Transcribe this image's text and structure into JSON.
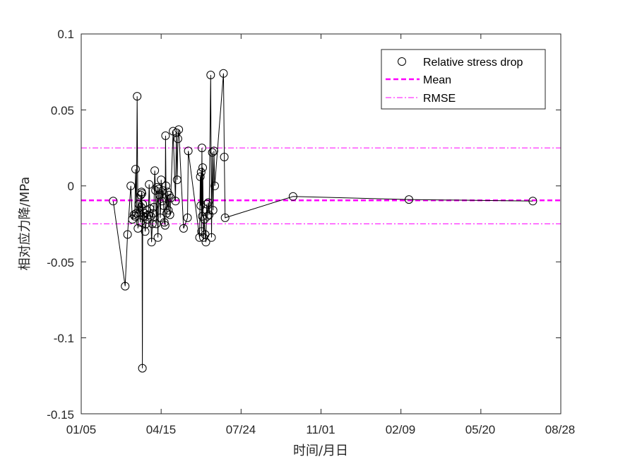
{
  "chart_data": {
    "type": "scatter",
    "xlabel": "时间/月日",
    "ylabel": "相对应力降/MPa",
    "x_ticks": [
      "01/05",
      "04/15",
      "07/24",
      "11/01",
      "02/09",
      "05/20",
      "08/28"
    ],
    "y_ticks": [
      "0.1",
      "0.05",
      "0",
      "-0.05",
      "-0.1",
      "-0.15"
    ],
    "xlim": [
      0,
      600
    ],
    "ylim": [
      -0.15,
      0.1
    ],
    "grid": false,
    "legend_position": "top-right",
    "legend": {
      "stress_label": "Relative stress drop",
      "mean_label": "Mean",
      "rmse_label": "RMSE"
    },
    "mean": -0.0095,
    "rmse_upper": 0.025,
    "rmse_lower": -0.025,
    "colors": {
      "points": "#000000",
      "mean": "#ff00ff",
      "rmse": "#ff00ff"
    },
    "series": [
      {
        "points": [
          [
            40,
            -0.01
          ],
          [
            55,
            -0.066
          ],
          [
            58,
            -0.032
          ],
          [
            62,
            0.0
          ],
          [
            64,
            -0.022
          ],
          [
            66,
            -0.019
          ],
          [
            67,
            -0.02
          ],
          [
            68,
            0.011
          ],
          [
            69,
            -0.018
          ],
          [
            70,
            0.059
          ],
          [
            71,
            -0.028
          ],
          [
            72,
            -0.012
          ],
          [
            73,
            -0.018
          ],
          [
            74,
            -0.024
          ],
          [
            74.5,
            -0.006
          ],
          [
            75,
            -0.014
          ],
          [
            75.5,
            -0.004
          ],
          [
            76,
            -0.005
          ],
          [
            76.5,
            -0.12
          ],
          [
            77,
            -0.012
          ],
          [
            78,
            -0.02
          ],
          [
            79,
            -0.018
          ],
          [
            80,
            -0.03
          ],
          [
            81,
            -0.025
          ],
          [
            82,
            -0.016
          ],
          [
            83,
            -0.022
          ],
          [
            84,
            -0.019
          ],
          [
            85,
            0.001
          ],
          [
            86,
            -0.015
          ],
          [
            87,
            -0.02
          ],
          [
            88,
            -0.037
          ],
          [
            89,
            -0.025
          ],
          [
            90,
            -0.018
          ],
          [
            91,
            -0.014
          ],
          [
            92,
            0.01
          ],
          [
            93,
            -0.003
          ],
          [
            94,
            -0.025
          ],
          [
            95,
            -0.001
          ],
          [
            96,
            -0.034
          ],
          [
            97,
            -0.002
          ],
          [
            98,
            -0.006
          ],
          [
            99,
            -0.021
          ],
          [
            100,
            0.004
          ],
          [
            101,
            -0.01
          ],
          [
            102,
            -0.003
          ],
          [
            103,
            -0.013
          ],
          [
            104,
            -0.024
          ],
          [
            105,
            -0.026
          ],
          [
            105.5,
            0.033
          ],
          [
            106,
            0.0
          ],
          [
            107,
            -0.018
          ],
          [
            108,
            -0.004
          ],
          [
            109,
            -0.016
          ],
          [
            110,
            -0.006
          ],
          [
            111,
            -0.019
          ],
          [
            112,
            -0.008
          ],
          [
            115,
            0.036
          ],
          [
            118,
            -0.01
          ],
          [
            119,
            0.035
          ],
          [
            120,
            0.004
          ],
          [
            121,
            0.031
          ],
          [
            122,
            0.037
          ],
          [
            128,
            -0.028
          ],
          [
            133,
            -0.021
          ],
          [
            134,
            0.023
          ],
          [
            148,
            -0.034
          ],
          [
            149,
            0.006
          ],
          [
            149.5,
            -0.013
          ],
          [
            150,
            0.009
          ],
          [
            150.5,
            -0.03
          ],
          [
            151,
            0.025
          ],
          [
            151.5,
            -0.02
          ],
          [
            152,
            0.012
          ],
          [
            153,
            -0.034
          ],
          [
            154,
            -0.022
          ],
          [
            155,
            -0.032
          ],
          [
            156,
            -0.037
          ],
          [
            157,
            -0.012
          ],
          [
            158,
            -0.02
          ],
          [
            159,
            -0.011
          ],
          [
            160,
            -0.019
          ],
          [
            162,
            0.073
          ],
          [
            163,
            -0.034
          ],
          [
            164,
            0.022
          ],
          [
            165,
            -0.016
          ],
          [
            166,
            0.023
          ],
          [
            167,
            0.0
          ],
          [
            178,
            0.074
          ],
          [
            179,
            0.019
          ],
          [
            180,
            -0.021
          ],
          [
            265,
            -0.007
          ],
          [
            410,
            -0.009
          ],
          [
            565,
            -0.01
          ]
        ]
      }
    ]
  }
}
